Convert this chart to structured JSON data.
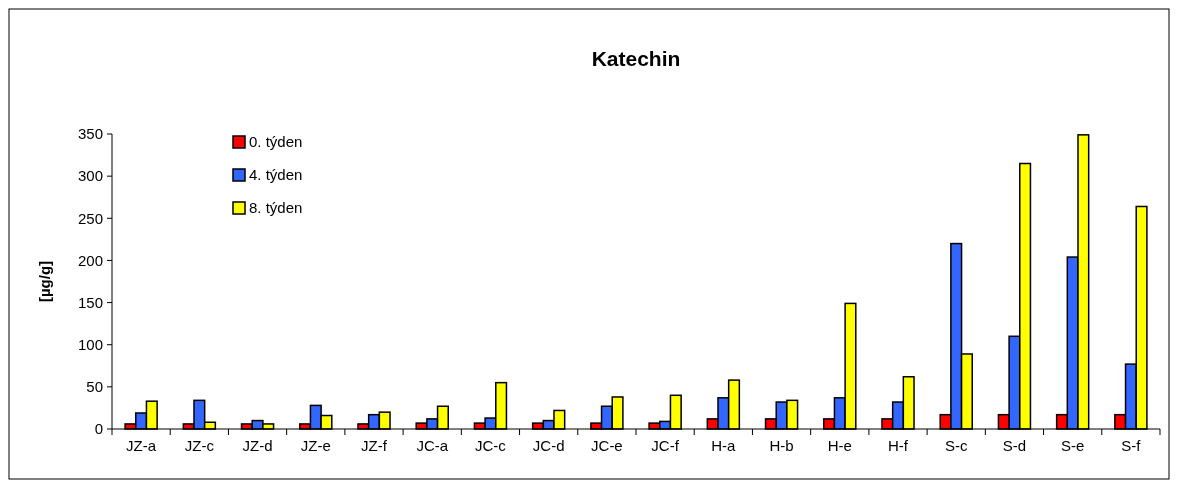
{
  "chart_data": {
    "type": "bar",
    "title": "Katechin",
    "ylabel": "[µg/g]",
    "categories": [
      "JZ-a",
      "JZ-c",
      "JZ-d",
      "JZ-e",
      "JZ-f",
      "JC-a",
      "JC-c",
      "JC-d",
      "JC-e",
      "JC-f",
      "H-a",
      "H-b",
      "H-e",
      "H-f",
      "S-c",
      "S-d",
      "S-e",
      "S-f"
    ],
    "series": [
      {
        "name": "0. týden",
        "color": "#ff0000",
        "values": [
          6,
          6,
          6,
          6,
          6,
          7,
          7,
          7,
          7,
          7,
          12,
          12,
          12,
          12,
          17,
          17,
          17,
          17
        ]
      },
      {
        "name": "4. týden",
        "color": "#3366ff",
        "values": [
          19,
          34,
          10,
          28,
          17,
          12,
          13,
          10,
          27,
          9,
          37,
          32,
          37,
          32,
          220,
          110,
          204,
          77
        ]
      },
      {
        "name": "8. týden",
        "color": "#ffff00",
        "values": [
          33,
          8,
          6,
          16,
          20,
          27,
          55,
          22,
          38,
          40,
          58,
          34,
          149,
          62,
          89,
          315,
          349,
          264
        ]
      }
    ],
    "ylim": [
      0,
      350
    ],
    "yticks": [
      0,
      50,
      100,
      150,
      200,
      250,
      300,
      350
    ],
    "grid": false,
    "legend": "top left"
  }
}
